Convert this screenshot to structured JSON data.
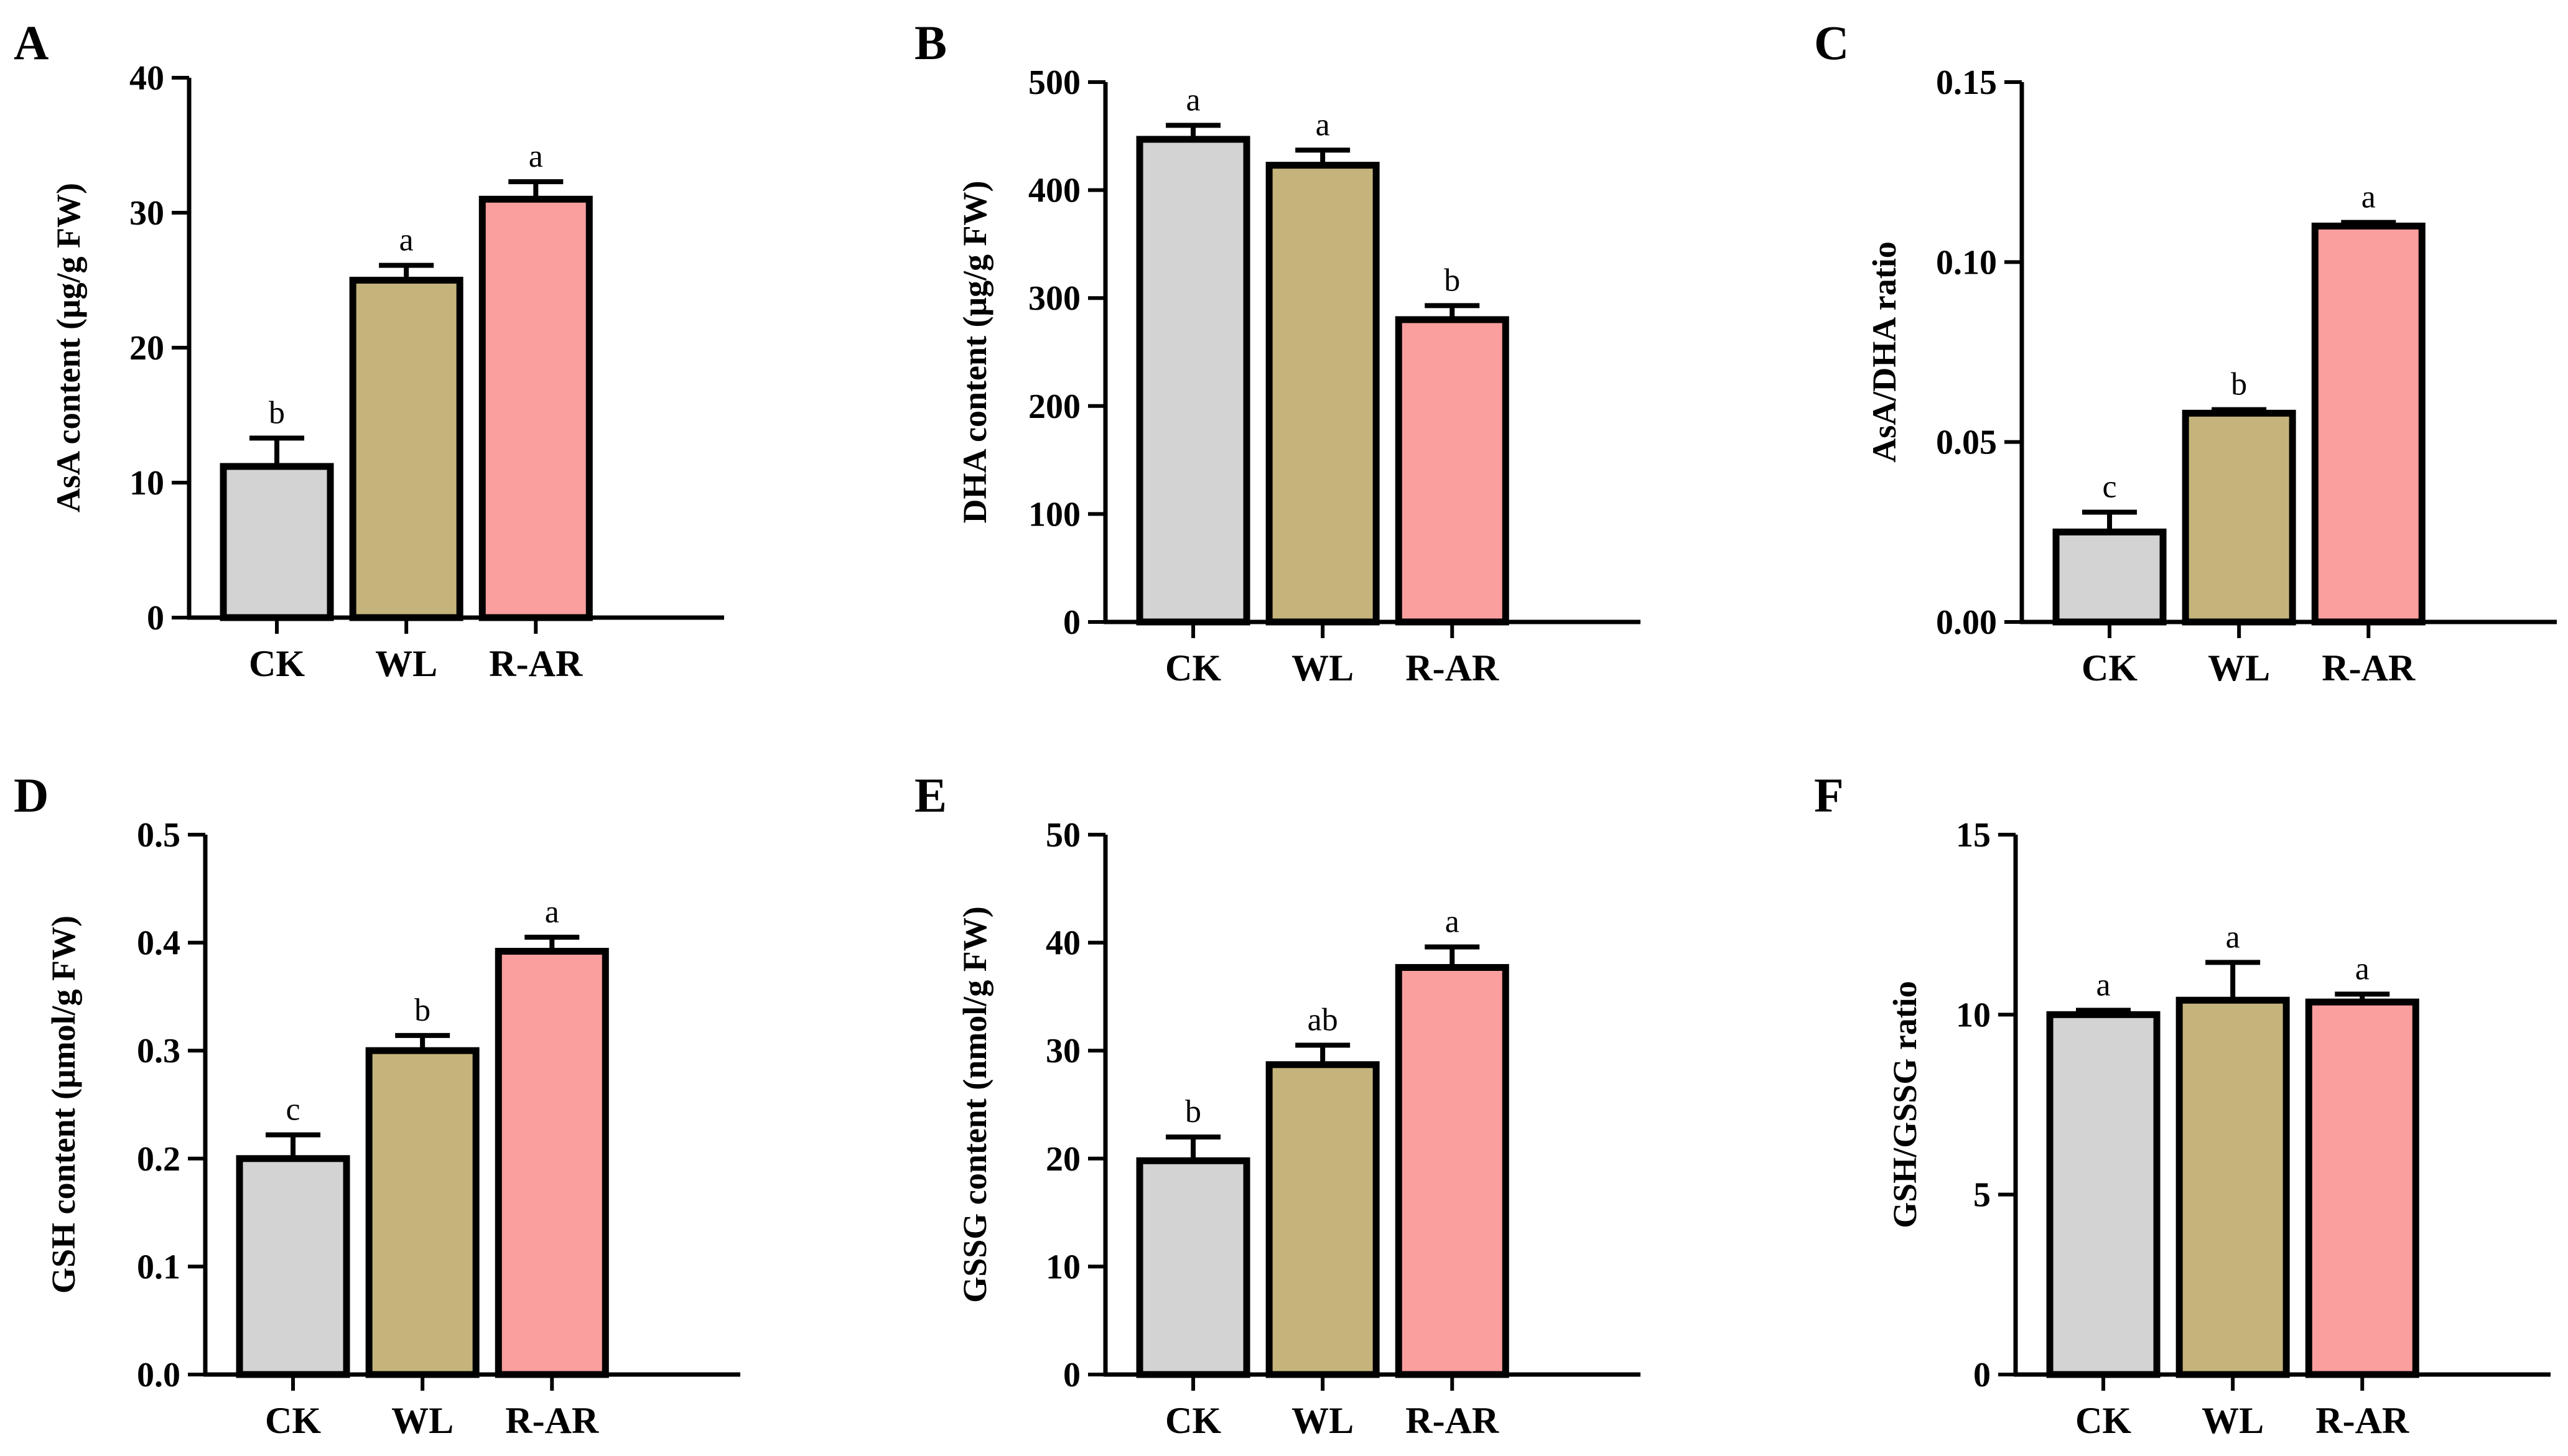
{
  "colors": {
    "CK": "#d3d3d3",
    "WL": "#c4b47b",
    "R-AR": "#fa9e9e",
    "stroke": "#000000"
  },
  "chart_data": [
    {
      "panel": "A",
      "type": "bar",
      "categories": [
        "CK",
        "WL",
        "R-AR"
      ],
      "values": [
        11.2,
        25.0,
        31.0
      ],
      "errors": [
        2.1,
        1.1,
        1.3
      ],
      "sig": [
        "b",
        "a",
        "a"
      ],
      "ylabel": "AsA content (μg/g FW)",
      "ylim": [
        0,
        40
      ],
      "yticks": [
        0,
        10,
        20,
        30,
        40
      ],
      "ytick_labels": [
        "0",
        "10",
        "20",
        "30",
        "40"
      ]
    },
    {
      "panel": "B",
      "type": "bar",
      "categories": [
        "CK",
        "WL",
        "R-AR"
      ],
      "values": [
        447,
        423,
        280
      ],
      "errors": [
        13,
        14,
        13
      ],
      "sig": [
        "a",
        "a",
        "b"
      ],
      "ylabel": "DHA content (μg/g FW)",
      "ylim": [
        0,
        500
      ],
      "yticks": [
        0,
        100,
        200,
        300,
        400,
        500
      ],
      "ytick_labels": [
        "0",
        "100",
        "200",
        "300",
        "400",
        "500"
      ]
    },
    {
      "panel": "C",
      "type": "bar",
      "categories": [
        "CK",
        "WL",
        "R-AR"
      ],
      "values": [
        0.025,
        0.058,
        0.11
      ],
      "errors": [
        0.0055,
        0.001,
        0.001
      ],
      "sig": [
        "c",
        "b",
        "a"
      ],
      "ylabel": "AsA/DHA ratio",
      "ylim": [
        0,
        0.15
      ],
      "yticks": [
        0,
        0.05,
        0.1,
        0.15
      ],
      "ytick_labels": [
        "0.00",
        "0.05",
        "0.10",
        "0.15"
      ]
    },
    {
      "panel": "D",
      "type": "bar",
      "categories": [
        "CK",
        "WL",
        "R-AR"
      ],
      "values": [
        0.2,
        0.3,
        0.392
      ],
      "errors": [
        0.022,
        0.014,
        0.013
      ],
      "sig": [
        "c",
        "b",
        "a"
      ],
      "ylabel": "GSH content (μmol/g FW)",
      "ylim": [
        0,
        0.5
      ],
      "yticks": [
        0,
        0.1,
        0.2,
        0.3,
        0.4,
        0.5
      ],
      "ytick_labels": [
        "0.0",
        "0.1",
        "0.2",
        "0.3",
        "0.4",
        "0.5"
      ]
    },
    {
      "panel": "E",
      "type": "bar",
      "categories": [
        "CK",
        "WL",
        "R-AR"
      ],
      "values": [
        19.8,
        28.7,
        37.7
      ],
      "errors": [
        2.2,
        1.8,
        1.9
      ],
      "sig": [
        "b",
        "ab",
        "a"
      ],
      "ylabel": "GSSG content (nmol/g FW)",
      "ylim": [
        0,
        50
      ],
      "yticks": [
        0,
        10,
        20,
        30,
        40,
        50
      ],
      "ytick_labels": [
        "0",
        "10",
        "20",
        "30",
        "40",
        "50"
      ]
    },
    {
      "panel": "F",
      "type": "bar",
      "categories": [
        "CK",
        "WL",
        "R-AR"
      ],
      "values": [
        10.0,
        10.4,
        10.35
      ],
      "errors": [
        0.12,
        1.05,
        0.22
      ],
      "sig": [
        "a",
        "a",
        "a"
      ],
      "ylabel": "GSH/GSSG ratio",
      "ylim": [
        0,
        15
      ],
      "yticks": [
        0,
        5,
        10,
        15
      ],
      "ytick_labels": [
        "0",
        "5",
        "10",
        "15"
      ]
    }
  ]
}
